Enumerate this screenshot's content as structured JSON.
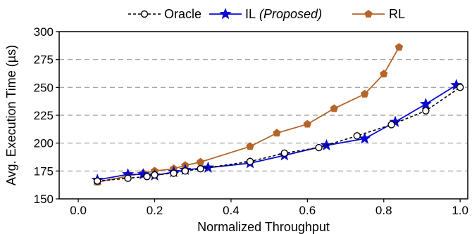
{
  "chart_data": {
    "type": "line",
    "xlabel": "Normalized Throughput",
    "ylabel": "Avg. Execution Time (µs)",
    "xlim": [
      -0.05,
      1.02
    ],
    "ylim": [
      150,
      300
    ],
    "xticks": [
      "0.0",
      "0.2",
      "0.4",
      "0.6",
      "0.8",
      "1.0"
    ],
    "xtick_values": [
      0.0,
      0.2,
      0.4,
      0.6,
      0.8,
      1.0
    ],
    "yticks": [
      "150",
      "175",
      "200",
      "225",
      "250",
      "275",
      "300"
    ],
    "ytick_values": [
      150,
      175,
      200,
      225,
      250,
      275,
      300
    ],
    "grid": "horizontal-dashed",
    "legend_placement": "top",
    "series": [
      {
        "name": "Oracle",
        "style": "dashed",
        "marker": "circle",
        "color": "#000000",
        "points": [
          [
            0.05,
            166
          ],
          [
            0.13,
            168.5
          ],
          [
            0.18,
            170
          ],
          [
            0.2,
            171.5
          ],
          [
            0.25,
            173
          ],
          [
            0.28,
            175
          ],
          [
            0.32,
            177
          ],
          [
            0.45,
            183.5
          ],
          [
            0.54,
            191
          ],
          [
            0.63,
            196
          ],
          [
            0.73,
            206.5
          ],
          [
            0.82,
            216.5
          ],
          [
            0.91,
            229
          ],
          [
            1.0,
            250
          ]
        ]
      },
      {
        "name": "IL",
        "name_suffix": "(Proposed)",
        "style": "solid",
        "marker": "star",
        "color": "#0a0ad0",
        "points": [
          [
            0.05,
            167
          ],
          [
            0.13,
            172
          ],
          [
            0.17,
            172
          ],
          [
            0.2,
            171
          ],
          [
            0.25,
            174
          ],
          [
            0.28,
            176
          ],
          [
            0.34,
            178
          ],
          [
            0.45,
            182
          ],
          [
            0.54,
            189
          ],
          [
            0.65,
            198
          ],
          [
            0.75,
            204
          ],
          [
            0.83,
            219
          ],
          [
            0.91,
            235
          ],
          [
            0.99,
            252
          ]
        ]
      },
      {
        "name": "RL",
        "style": "solid",
        "marker": "pentagon",
        "color": "#b5652a",
        "points": [
          [
            0.05,
            165
          ],
          [
            0.17,
            173
          ],
          [
            0.2,
            175
          ],
          [
            0.25,
            177
          ],
          [
            0.28,
            180
          ],
          [
            0.32,
            183
          ],
          [
            0.45,
            197
          ],
          [
            0.52,
            209
          ],
          [
            0.6,
            217
          ],
          [
            0.67,
            231
          ],
          [
            0.75,
            244
          ],
          [
            0.8,
            262
          ],
          [
            0.84,
            286
          ]
        ]
      }
    ]
  }
}
